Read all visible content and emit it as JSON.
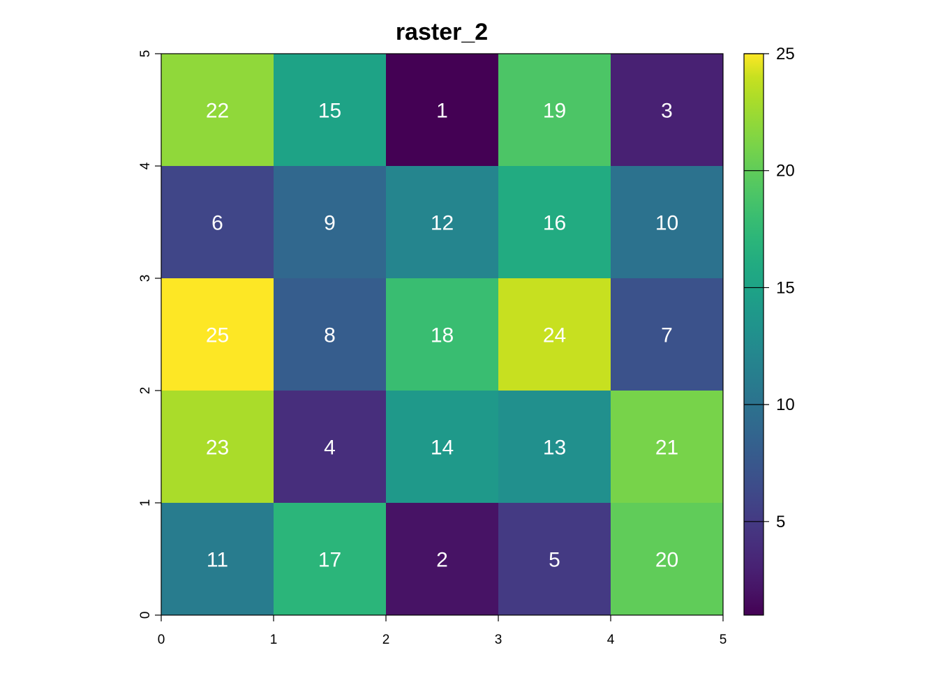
{
  "chart_data": {
    "type": "heatmap",
    "title": "raster_2",
    "xlabel": "",
    "ylabel": "",
    "xlim": [
      0,
      5
    ],
    "ylim": [
      0,
      5
    ],
    "x_ticks": [
      "0",
      "1",
      "2",
      "3",
      "4",
      "5"
    ],
    "y_ticks": [
      "0",
      "1",
      "2",
      "3",
      "4",
      "5"
    ],
    "rows_top_to_bottom": [
      [
        22,
        15,
        1,
        19,
        3
      ],
      [
        6,
        9,
        12,
        16,
        10
      ],
      [
        25,
        8,
        18,
        24,
        7
      ],
      [
        23,
        4,
        14,
        13,
        21
      ],
      [
        11,
        17,
        2,
        5,
        20
      ]
    ],
    "colorbar": {
      "min": 1,
      "max": 25,
      "ticks": [
        "5",
        "10",
        "15",
        "20",
        "25"
      ],
      "palette": "viridis",
      "placement": "right"
    }
  }
}
